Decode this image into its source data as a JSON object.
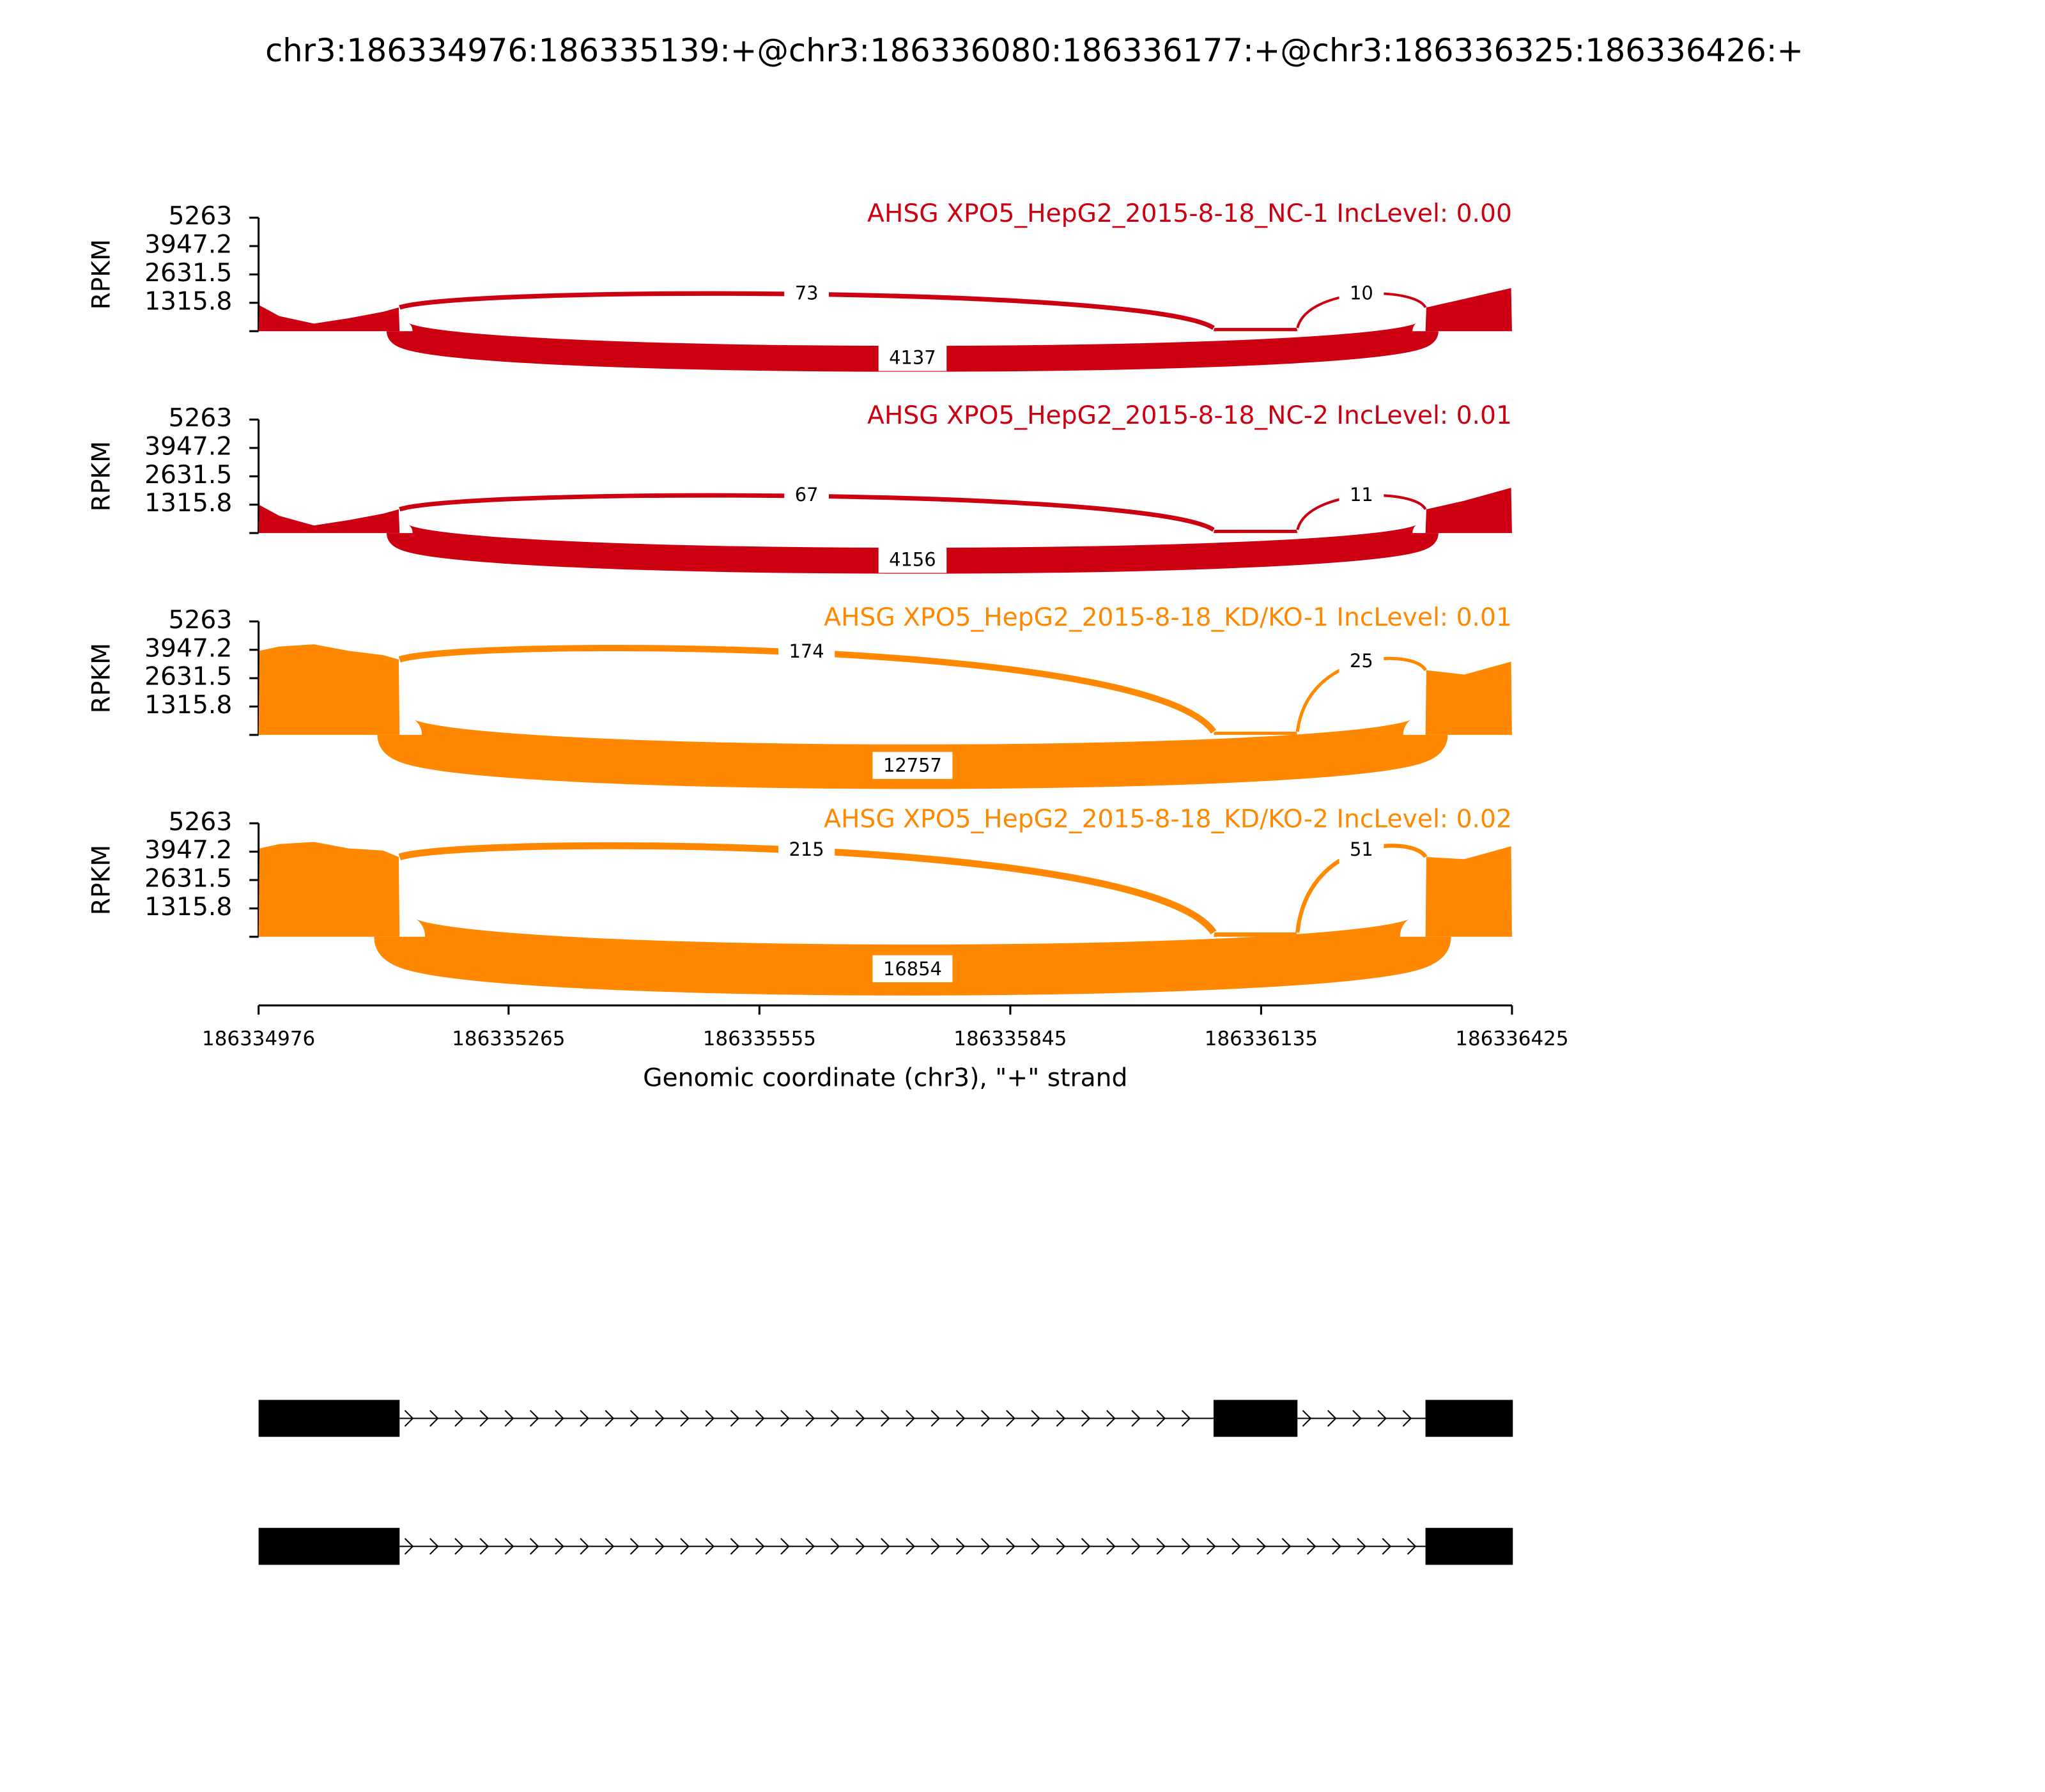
{
  "chart_data": {
    "type": "sashimi",
    "title": "chr3:186334976:186335139:+@chr3:186336080:186336177:+@chr3:186336325:186336426:+",
    "xlabel": "Genomic coordinate (chr3), \"+\" strand",
    "ylabel": "RPKM",
    "xlim": [
      186334976,
      186336425
    ],
    "xticks": [
      186334976,
      186335265,
      186335555,
      186335845,
      186336135,
      186336425
    ],
    "x": [
      186334976,
      186334977,
      186335000,
      186335040,
      186335080,
      186335120,
      186335138,
      186335139,
      186335600,
      186336080,
      186336081,
      186336176,
      186336177,
      186336250,
      186336325,
      186336326,
      186336370,
      186336424,
      186336425
    ],
    "panels": [
      {
        "name": "AHSG XPO5_HepG2_2015-8-18_NC-1 IncLevel: 0.00",
        "color": "#cc0011",
        "ylim": [
          0,
          5263
        ],
        "yticks": [
          1315.8,
          2631.5,
          3947.2,
          5263
        ],
        "values": [
          0,
          1200,
          700,
          350,
          600,
          900,
          1100,
          0,
          null,
          0,
          150,
          150,
          0,
          null,
          0,
          1100,
          1500,
          2000,
          0
        ],
        "junctions": [
          {
            "start": 186335139,
            "end": 186336080,
            "count": 73
          },
          {
            "start": 186336177,
            "end": 186336325,
            "count": 10
          },
          {
            "start": 186335139,
            "end": 186336325,
            "count": 4137
          }
        ]
      },
      {
        "name": "AHSG XPO5_HepG2_2015-8-18_NC-2 IncLevel: 0.01",
        "color": "#cc0011",
        "ylim": [
          0,
          5263
        ],
        "yticks": [
          1315.8,
          2631.5,
          3947.2,
          5263
        ],
        "values": [
          0,
          1300,
          800,
          350,
          600,
          900,
          1100,
          0,
          null,
          0,
          150,
          150,
          0,
          null,
          0,
          1100,
          1500,
          2100,
          0
        ],
        "junctions": [
          {
            "start": 186335139,
            "end": 186336080,
            "count": 67
          },
          {
            "start": 186336177,
            "end": 186336325,
            "count": 11
          },
          {
            "start": 186335139,
            "end": 186336325,
            "count": 4156
          }
        ]
      },
      {
        "name": "AHSG XPO5_HepG2_2015-8-18_KD/KO-1 IncLevel: 0.01",
        "color": "#ff8800",
        "ylim": [
          0,
          5263
        ],
        "yticks": [
          1315.8,
          2631.5,
          3947.2,
          5263
        ],
        "values": [
          0,
          3900,
          4100,
          4200,
          3900,
          3700,
          3500,
          0,
          null,
          0,
          150,
          150,
          0,
          null,
          0,
          3000,
          2800,
          3400,
          0
        ],
        "junctions": [
          {
            "start": 186335139,
            "end": 186336080,
            "count": 174
          },
          {
            "start": 186336177,
            "end": 186336325,
            "count": 25
          },
          {
            "start": 186335139,
            "end": 186336325,
            "count": 12757
          }
        ]
      },
      {
        "name": "AHSG XPO5_HepG2_2015-8-18_KD/KO-2 IncLevel: 0.02",
        "color": "#ff8800",
        "ylim": [
          0,
          5263
        ],
        "yticks": [
          1315.8,
          2631.5,
          3947.2,
          5263
        ],
        "values": [
          0,
          4100,
          4300,
          4400,
          4100,
          4000,
          3700,
          0,
          null,
          0,
          200,
          200,
          0,
          null,
          0,
          3700,
          3600,
          4200,
          0
        ],
        "junctions": [
          {
            "start": 186335139,
            "end": 186336080,
            "count": 215
          },
          {
            "start": 186336177,
            "end": 186336325,
            "count": 51
          },
          {
            "start": 186335139,
            "end": 186336325,
            "count": 16854
          }
        ]
      }
    ],
    "transcripts": [
      [
        [
          186334976,
          186335139
        ],
        [
          186336080,
          186336177
        ],
        [
          186336325,
          186336426
        ]
      ],
      [
        [
          186334976,
          186335139
        ],
        [
          186336325,
          186336426
        ]
      ]
    ]
  }
}
